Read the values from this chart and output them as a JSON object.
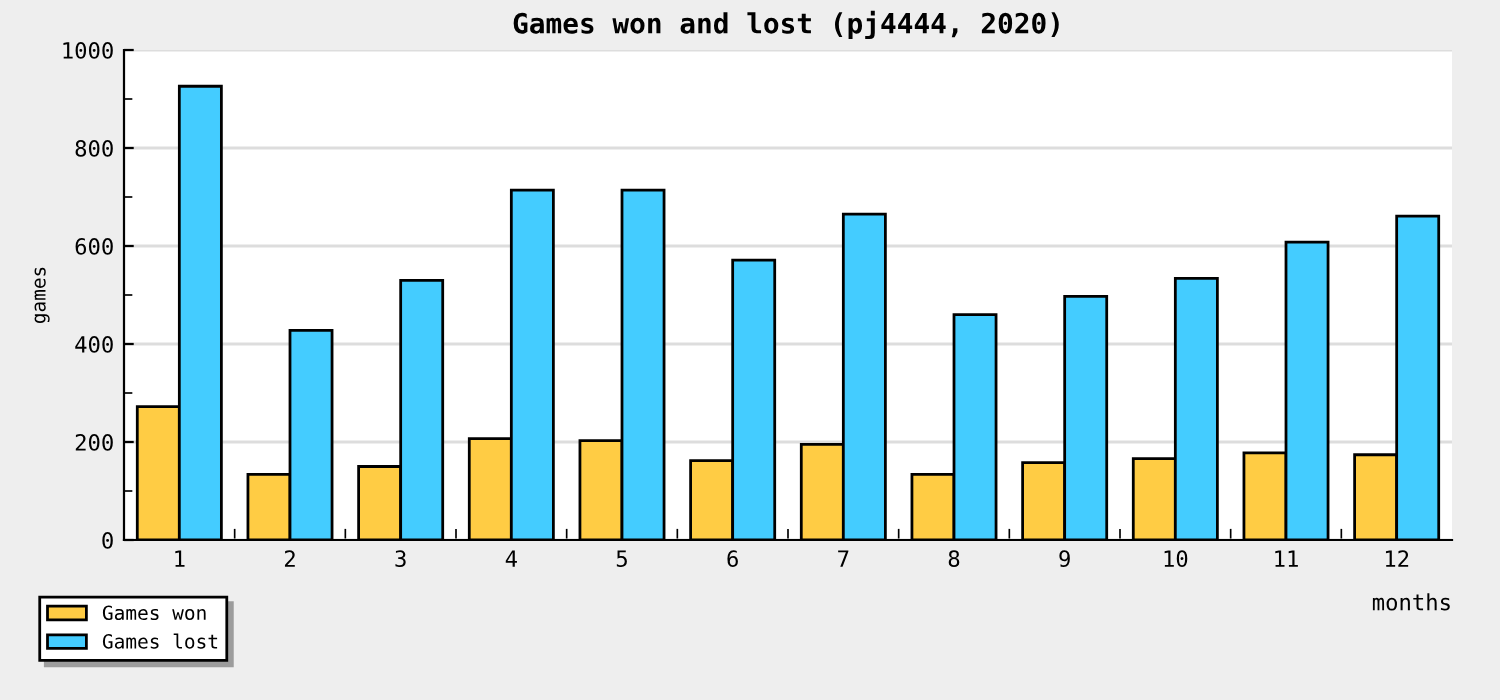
{
  "chart_data": {
    "type": "bar",
    "title": "Games won and lost (pj4444, 2020)",
    "xlabel": "months",
    "ylabel": "games",
    "categories": [
      "1",
      "2",
      "3",
      "4",
      "5",
      "6",
      "7",
      "8",
      "9",
      "10",
      "11",
      "12"
    ],
    "series": [
      {
        "name": "Games won",
        "color": "#ffcc44",
        "values": [
          272,
          134,
          150,
          207,
          203,
          162,
          195,
          134,
          158,
          166,
          178,
          174
        ]
      },
      {
        "name": "Games lost",
        "color": "#44ccff",
        "values": [
          926,
          428,
          530,
          714,
          714,
          571,
          665,
          460,
          497,
          534,
          608,
          661
        ]
      }
    ],
    "ylim": [
      0,
      1000
    ],
    "yticks": [
      0,
      200,
      400,
      600,
      800,
      1000
    ],
    "grid": "y",
    "legend": "bottom left"
  }
}
